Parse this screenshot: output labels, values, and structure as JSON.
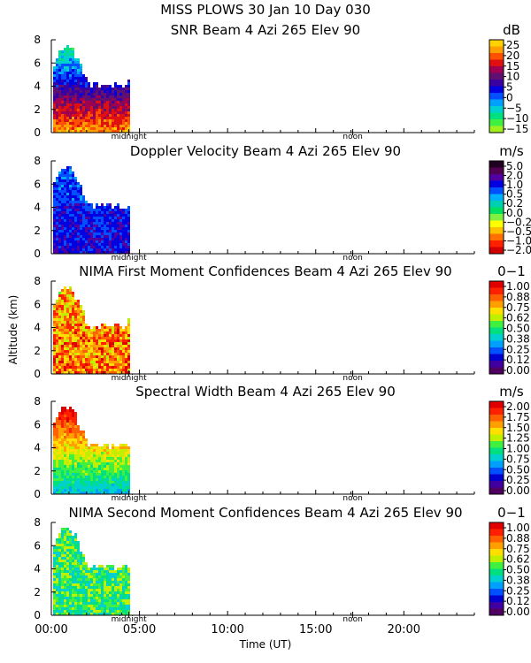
{
  "figure": {
    "title": "MISS PLOWS  30 Jan 10 Day 030",
    "ylabel": "Altitude (km)",
    "xlabel": "Time (UT)",
    "xticks": [
      "00:00",
      "05:00",
      "10:00",
      "15:00",
      "20:00"
    ],
    "midnight_label": "midnight",
    "noon_label": "noon"
  },
  "chart_data": [
    {
      "type": "heatmap",
      "title": "SNR Beam 4 Azi 265 Elev 90",
      "unit": "dB",
      "xlim_hours": [
        0,
        24
      ],
      "ylim_km": [
        0,
        8
      ],
      "yticks": [
        "0",
        "2",
        "4",
        "6",
        "8"
      ],
      "data_extent_hours": [
        0,
        4.4
      ],
      "colorbar": {
        "ticks": [
          "25",
          "20",
          "15",
          "10",
          "5",
          "0",
          "−5",
          "−10",
          "−15"
        ],
        "colors": [
          "#ffd200",
          "#ffa000",
          "#ff5000",
          "#e01010",
          "#a00050",
          "#601070",
          "#3a00a0",
          "#0000e0",
          "#0050ff",
          "#00a0ff",
          "#00d0d0",
          "#00e080",
          "#40f040",
          "#a0f020"
        ]
      }
    },
    {
      "type": "heatmap",
      "title": "Doppler Velocity Beam 4 Azi 265 Elev 90",
      "unit": "m/s",
      "xlim_hours": [
        0,
        24
      ],
      "ylim_km": [
        0,
        8
      ],
      "yticks": [
        "0",
        "2",
        "4",
        "6",
        "8"
      ],
      "data_extent_hours": [
        0,
        4.4
      ],
      "colorbar": {
        "ticks": [
          "5.0",
          "2.0",
          "1.0",
          "0.5",
          "0.2",
          "0.0",
          "−0.2",
          "−0.5",
          "−1.0",
          "−2.0"
        ],
        "colors": [
          "#200020",
          "#500050",
          "#5000a0",
          "#0000e0",
          "#0050ff",
          "#00b0ff",
          "#00d0b0",
          "#00e060",
          "#80f040",
          "#ffff00",
          "#ffc000",
          "#ff7000",
          "#ff2000",
          "#d00000"
        ]
      }
    },
    {
      "type": "heatmap",
      "title": "NIMA First Moment Confidences Beam 4 Azi 265 Elev 90",
      "unit": "0−1",
      "xlim_hours": [
        0,
        24
      ],
      "ylim_km": [
        0,
        8
      ],
      "yticks": [
        "0",
        "2",
        "4",
        "6",
        "8"
      ],
      "data_extent_hours": [
        0,
        4.4
      ],
      "colorbar": {
        "ticks": [
          "1.00",
          "0.88",
          "0.75",
          "0.62",
          "0.50",
          "0.38",
          "0.25",
          "0.12",
          "0.00"
        ],
        "colors": [
          "#e00000",
          "#ff2000",
          "#ff6000",
          "#ffa000",
          "#ffe000",
          "#c0f000",
          "#40f040",
          "#00e080",
          "#00d0d0",
          "#00a0ff",
          "#0050ff",
          "#0000d0",
          "#4000a0",
          "#500060"
        ]
      }
    },
    {
      "type": "heatmap",
      "title": "Spectral Width Beam 4 Azi 265 Elev 90",
      "unit": "m/s",
      "xlim_hours": [
        0,
        24
      ],
      "ylim_km": [
        0,
        8
      ],
      "yticks": [
        "0",
        "2",
        "4",
        "6",
        "8"
      ],
      "data_extent_hours": [
        0,
        4.4
      ],
      "colorbar": {
        "ticks": [
          "2.00",
          "1.75",
          "1.50",
          "1.25",
          "1.00",
          "0.75",
          "0.50",
          "0.25",
          "0.00"
        ],
        "colors": [
          "#e00000",
          "#ff2000",
          "#ff6000",
          "#ffa000",
          "#ffe000",
          "#c0f000",
          "#40f040",
          "#00e080",
          "#00d0d0",
          "#00a0ff",
          "#0050ff",
          "#0000d0",
          "#4000a0",
          "#500060"
        ]
      }
    },
    {
      "type": "heatmap",
      "title": "NIMA Second Moment Confidences Beam 4 Azi 265 Elev 90",
      "unit": "0−1",
      "xlim_hours": [
        0,
        24
      ],
      "ylim_km": [
        0,
        8
      ],
      "yticks": [
        "0",
        "2",
        "4",
        "6",
        "8"
      ],
      "data_extent_hours": [
        0,
        4.4
      ],
      "colorbar": {
        "ticks": [
          "1.00",
          "0.88",
          "0.75",
          "0.62",
          "0.50",
          "0.38",
          "0.25",
          "0.12",
          "0.00"
        ],
        "colors": [
          "#e00000",
          "#ff2000",
          "#ff6000",
          "#ffa000",
          "#ffe000",
          "#c0f000",
          "#40f040",
          "#00e080",
          "#00d0d0",
          "#00a0ff",
          "#0050ff",
          "#0000d0",
          "#4000a0",
          "#500060"
        ]
      }
    }
  ]
}
